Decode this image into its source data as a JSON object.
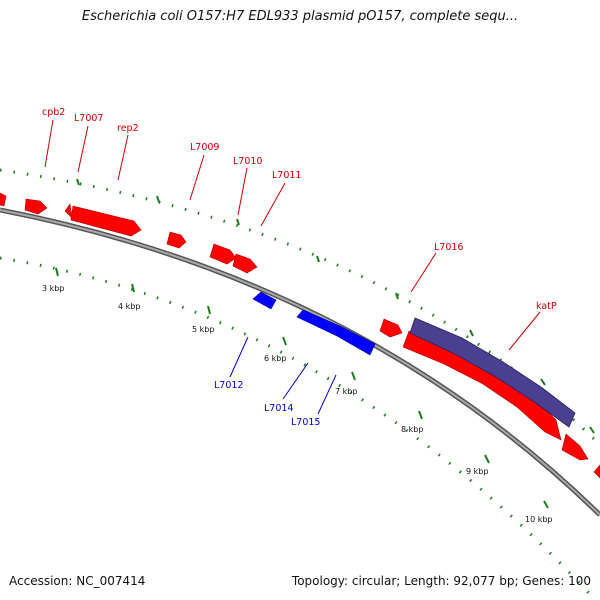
{
  "title": "Escherichia coli O157:H7 EDL933 plasmid pO157, complete sequ...",
  "footer": {
    "accession": "Accession: NC_007414",
    "info": "Topology: circular; Length: 92,077 bp; Genes: 100"
  },
  "colors": {
    "forward_gene": "#ff0000",
    "reverse_gene": "#0000ff",
    "orf": "#4b3f8f",
    "backbone": "#888888",
    "tick": "#1e7a1e",
    "forward_label": "#cc0000",
    "reverse_label": "#0000cc"
  },
  "gene_labels": {
    "cpb2": "cpb2",
    "L7007": "L7007",
    "rep2": "rep2",
    "L7009": "L7009",
    "L7010": "L7010",
    "L7011": "L7011",
    "L7016": "L7016",
    "katP": "katP",
    "L7012": "L7012",
    "L7014": "L7014",
    "L7015": "L7015"
  },
  "kbp_labels": {
    "k3": "3 kbp",
    "k4": "4 kbp",
    "k5": "5 kbp",
    "k6": "6 kbp",
    "k7": "7 kbp",
    "k8": "8 kbp",
    "k9": "9 kbp",
    "k10": "10 kbp"
  }
}
